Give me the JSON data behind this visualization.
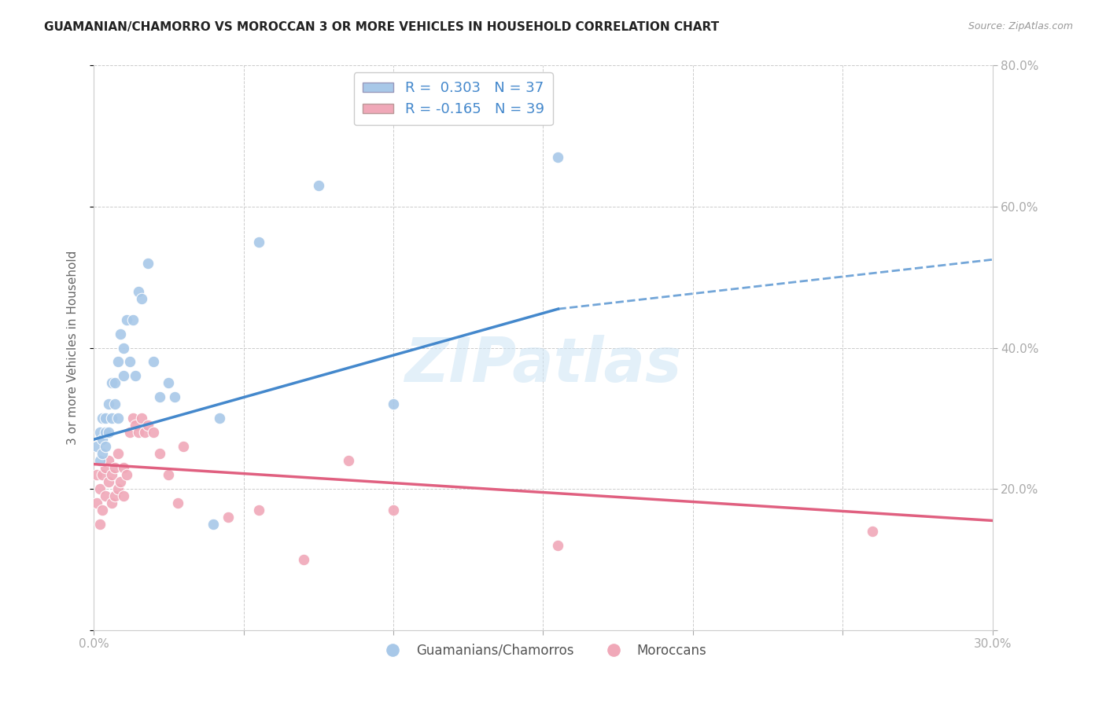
{
  "title": "GUAMANIAN/CHAMORRO VS MOROCCAN 3 OR MORE VEHICLES IN HOUSEHOLD CORRELATION CHART",
  "source": "Source: ZipAtlas.com",
  "ylabel": "3 or more Vehicles in Household",
  "xlim": [
    0.0,
    0.3
  ],
  "ylim": [
    0.0,
    0.8
  ],
  "legend_r1": "R =  0.303   N = 37",
  "legend_r2": "R = -0.165   N = 39",
  "color_blue": "#a8c8e8",
  "color_pink": "#f0a8b8",
  "color_line_blue": "#4488cc",
  "color_line_pink": "#e06080",
  "color_grid": "#cccccc",
  "color_axis_label": "#4488cc",
  "background_color": "#ffffff",
  "watermark": "ZIPatlas",
  "guamanian_x": [
    0.001,
    0.002,
    0.002,
    0.003,
    0.003,
    0.003,
    0.004,
    0.004,
    0.004,
    0.005,
    0.005,
    0.006,
    0.006,
    0.007,
    0.007,
    0.008,
    0.008,
    0.009,
    0.01,
    0.01,
    0.011,
    0.012,
    0.013,
    0.014,
    0.015,
    0.016,
    0.018,
    0.02,
    0.022,
    0.025,
    0.027,
    0.04,
    0.042,
    0.055,
    0.075,
    0.1,
    0.155
  ],
  "guamanian_y": [
    0.26,
    0.28,
    0.24,
    0.27,
    0.3,
    0.25,
    0.28,
    0.26,
    0.3,
    0.32,
    0.28,
    0.3,
    0.35,
    0.32,
    0.35,
    0.3,
    0.38,
    0.42,
    0.36,
    0.4,
    0.44,
    0.38,
    0.44,
    0.36,
    0.48,
    0.47,
    0.52,
    0.38,
    0.33,
    0.35,
    0.33,
    0.15,
    0.3,
    0.55,
    0.63,
    0.32,
    0.67
  ],
  "moroccan_x": [
    0.001,
    0.001,
    0.002,
    0.002,
    0.003,
    0.003,
    0.004,
    0.004,
    0.005,
    0.005,
    0.006,
    0.006,
    0.007,
    0.007,
    0.008,
    0.008,
    0.009,
    0.01,
    0.01,
    0.011,
    0.012,
    0.013,
    0.014,
    0.015,
    0.016,
    0.017,
    0.018,
    0.02,
    0.022,
    0.025,
    0.028,
    0.03,
    0.045,
    0.055,
    0.07,
    0.085,
    0.1,
    0.155,
    0.26
  ],
  "moroccan_y": [
    0.22,
    0.18,
    0.2,
    0.15,
    0.22,
    0.17,
    0.23,
    0.19,
    0.21,
    0.24,
    0.18,
    0.22,
    0.19,
    0.23,
    0.2,
    0.25,
    0.21,
    0.23,
    0.19,
    0.22,
    0.28,
    0.3,
    0.29,
    0.28,
    0.3,
    0.28,
    0.29,
    0.28,
    0.25,
    0.22,
    0.18,
    0.26,
    0.16,
    0.17,
    0.1,
    0.24,
    0.17,
    0.12,
    0.14
  ],
  "blue_line_x0": 0.0,
  "blue_line_y0": 0.27,
  "blue_line_x1": 0.155,
  "blue_line_y1": 0.455,
  "blue_line_xdash": 0.3,
  "blue_line_ydash": 0.525,
  "pink_line_x0": 0.0,
  "pink_line_y0": 0.235,
  "pink_line_x1": 0.3,
  "pink_line_y1": 0.155
}
